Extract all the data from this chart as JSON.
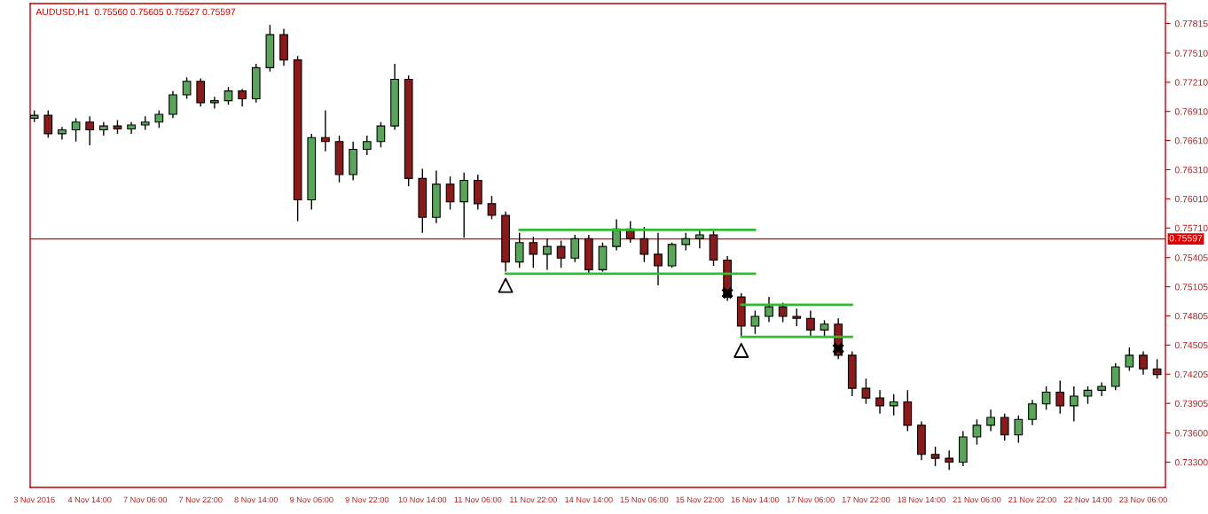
{
  "chart_data": {
    "type": "candlestick",
    "title": "AUDUSD,H1  0.75560 0.75605 0.75527 0.75597",
    "categories": [
      "3 Nov 2016",
      null,
      null,
      null,
      "4 Nov 14:00",
      null,
      null,
      null,
      "7 Nov 06:00",
      null,
      null,
      null,
      "7 Nov 22:00",
      null,
      null,
      null,
      "8 Nov 14:00",
      null,
      null,
      null,
      "9 Nov 06:00",
      null,
      null,
      null,
      "9 Nov 22:00",
      null,
      null,
      null,
      "10 Nov 14:00",
      null,
      null,
      null,
      "11 Nov 06:00",
      null,
      null,
      null,
      "11 Nov 22:00",
      null,
      null,
      null,
      "14 Nov 14:00",
      null,
      null,
      null,
      "15 Nov 06:00",
      null,
      null,
      null,
      "15 Nov 22:00",
      null,
      null,
      null,
      "16 Nov 14:00",
      null,
      null,
      null,
      "17 Nov 06:00",
      null,
      null,
      null,
      "17 Nov 22:00",
      null,
      null,
      null,
      "18 Nov 14:00",
      null,
      null,
      null,
      "21 Nov 06:00",
      null,
      null,
      null,
      "21 Nov 22:00",
      null,
      null,
      null,
      "22 Nov 14:00",
      null,
      null,
      null,
      "23 Nov 06:00",
      null
    ],
    "ohlc": [
      [
        0.7684,
        0.7692,
        0.768,
        0.7687
      ],
      [
        0.7687,
        0.7692,
        0.7664,
        0.7668
      ],
      [
        0.7668,
        0.7675,
        0.7662,
        0.7672
      ],
      [
        0.7672,
        0.7684,
        0.766,
        0.768
      ],
      [
        0.768,
        0.7686,
        0.7656,
        0.7672
      ],
      [
        0.7672,
        0.768,
        0.7666,
        0.7676
      ],
      [
        0.7676,
        0.7682,
        0.7668,
        0.7673
      ],
      [
        0.7673,
        0.768,
        0.7668,
        0.7677
      ],
      [
        0.7677,
        0.7686,
        0.7672,
        0.768
      ],
      [
        0.768,
        0.7692,
        0.7674,
        0.7688
      ],
      [
        0.7688,
        0.7712,
        0.7684,
        0.7708
      ],
      [
        0.7708,
        0.7726,
        0.7704,
        0.7722
      ],
      [
        0.7722,
        0.7725,
        0.7696,
        0.77
      ],
      [
        0.77,
        0.7706,
        0.7694,
        0.7702
      ],
      [
        0.7702,
        0.7716,
        0.7698,
        0.7712
      ],
      [
        0.7712,
        0.7714,
        0.7696,
        0.7704
      ],
      [
        0.7704,
        0.774,
        0.77,
        0.7736
      ],
      [
        0.7736,
        0.778,
        0.7732,
        0.777
      ],
      [
        0.777,
        0.7776,
        0.7738,
        0.7744
      ],
      [
        0.7744,
        0.7748,
        0.7578,
        0.76
      ],
      [
        0.76,
        0.7668,
        0.759,
        0.7664
      ],
      [
        0.7664,
        0.7692,
        0.765,
        0.766
      ],
      [
        0.766,
        0.7666,
        0.7618,
        0.7626
      ],
      [
        0.7626,
        0.766,
        0.762,
        0.7652
      ],
      [
        0.7652,
        0.7666,
        0.7646,
        0.766
      ],
      [
        0.766,
        0.768,
        0.7654,
        0.7676
      ],
      [
        0.7676,
        0.774,
        0.7672,
        0.7724
      ],
      [
        0.7724,
        0.7728,
        0.7614,
        0.7622
      ],
      [
        0.7622,
        0.7632,
        0.7566,
        0.7582
      ],
      [
        0.7582,
        0.763,
        0.7576,
        0.7616
      ],
      [
        0.7616,
        0.7624,
        0.759,
        0.7598
      ],
      [
        0.7598,
        0.7628,
        0.7561,
        0.762
      ],
      [
        0.762,
        0.7626,
        0.759,
        0.7596
      ],
      [
        0.7596,
        0.7604,
        0.758,
        0.7584
      ],
      [
        0.7584,
        0.7588,
        0.7526,
        0.7536
      ],
      [
        0.7536,
        0.7566,
        0.753,
        0.7556
      ],
      [
        0.7556,
        0.7562,
        0.753,
        0.7544
      ],
      [
        0.7544,
        0.756,
        0.7528,
        0.7552
      ],
      [
        0.7552,
        0.7558,
        0.753,
        0.754
      ],
      [
        0.754,
        0.7564,
        0.7536,
        0.756
      ],
      [
        0.756,
        0.7564,
        0.7524,
        0.7528
      ],
      [
        0.7528,
        0.7556,
        0.7526,
        0.7552
      ],
      [
        0.7552,
        0.758,
        0.7548,
        0.757
      ],
      [
        0.757,
        0.7578,
        0.7556,
        0.756
      ],
      [
        0.756,
        0.7572,
        0.7536,
        0.7544
      ],
      [
        0.7544,
        0.7566,
        0.7512,
        0.7532
      ],
      [
        0.7532,
        0.7556,
        0.753,
        0.7554
      ],
      [
        0.7554,
        0.7566,
        0.7548,
        0.756
      ],
      [
        0.756,
        0.757,
        0.755,
        0.7564
      ],
      [
        0.7564,
        0.7568,
        0.7532,
        0.7538
      ],
      [
        0.7538,
        0.7542,
        0.7496,
        0.75
      ],
      [
        0.75,
        0.7504,
        0.746,
        0.747
      ],
      [
        0.747,
        0.7486,
        0.7462,
        0.748
      ],
      [
        0.748,
        0.75,
        0.7474,
        0.749
      ],
      [
        0.749,
        0.7494,
        0.7474,
        0.748
      ],
      [
        0.748,
        0.7488,
        0.747,
        0.7478
      ],
      [
        0.7478,
        0.7486,
        0.746,
        0.7466
      ],
      [
        0.7466,
        0.7476,
        0.7458,
        0.7472
      ],
      [
        0.7472,
        0.7478,
        0.7436,
        0.744
      ],
      [
        0.744,
        0.7444,
        0.7398,
        0.7406
      ],
      [
        0.7406,
        0.7416,
        0.739,
        0.7396
      ],
      [
        0.7396,
        0.7404,
        0.738,
        0.7388
      ],
      [
        0.7388,
        0.74,
        0.7378,
        0.7392
      ],
      [
        0.7392,
        0.7404,
        0.7362,
        0.7368
      ],
      [
        0.7368,
        0.7372,
        0.7332,
        0.7338
      ],
      [
        0.7338,
        0.7346,
        0.7326,
        0.7334
      ],
      [
        0.7334,
        0.7342,
        0.7322,
        0.733
      ],
      [
        0.733,
        0.7362,
        0.7326,
        0.7356
      ],
      [
        0.7356,
        0.7374,
        0.7348,
        0.7368
      ],
      [
        0.7368,
        0.7384,
        0.7362,
        0.7376
      ],
      [
        0.7376,
        0.738,
        0.7352,
        0.7358
      ],
      [
        0.7358,
        0.7378,
        0.735,
        0.7374
      ],
      [
        0.7374,
        0.7394,
        0.7368,
        0.739
      ],
      [
        0.739,
        0.7408,
        0.7384,
        0.7402
      ],
      [
        0.7402,
        0.7414,
        0.738,
        0.7388
      ],
      [
        0.7388,
        0.7408,
        0.7372,
        0.7398
      ],
      [
        0.7398,
        0.7408,
        0.739,
        0.7404
      ],
      [
        0.7404,
        0.7412,
        0.7398,
        0.7408
      ],
      [
        0.7408,
        0.7432,
        0.7404,
        0.7428
      ],
      [
        0.7428,
        0.7448,
        0.7424,
        0.744
      ],
      [
        0.744,
        0.7444,
        0.742,
        0.7426
      ],
      [
        0.7426,
        0.7436,
        0.7416,
        0.742
      ]
    ],
    "series": [
      {
        "type": "line",
        "color": "#33bb33",
        "values": [
          null,
          null,
          null,
          null,
          null,
          null,
          null,
          null,
          null,
          null,
          null,
          null,
          null,
          null,
          null,
          null,
          null,
          null,
          null,
          null,
          null,
          null,
          null,
          null,
          null,
          null,
          null,
          null,
          null,
          null,
          null,
          null,
          null,
          null,
          null,
          0.7569,
          0.7569,
          0.7569,
          0.7569,
          0.7569,
          0.7569,
          0.7569,
          0.7569,
          0.7569,
          0.7569,
          0.7569,
          0.7569,
          0.7569,
          0.7569,
          0.7569,
          0.7569,
          0.7569,
          0.7569,
          null,
          null,
          null,
          null,
          null,
          null,
          null,
          null,
          null,
          null,
          null,
          null,
          null,
          null,
          null,
          null,
          null,
          null,
          null,
          null,
          null,
          null,
          null,
          null,
          null,
          null,
          null,
          null,
          null
        ]
      },
      {
        "type": "line",
        "color": "#33bb33",
        "values": [
          null,
          null,
          null,
          null,
          null,
          null,
          null,
          null,
          null,
          null,
          null,
          null,
          null,
          null,
          null,
          null,
          null,
          null,
          null,
          null,
          null,
          null,
          null,
          null,
          null,
          null,
          null,
          null,
          null,
          null,
          null,
          null,
          null,
          null,
          0.7524,
          0.7524,
          0.7524,
          0.7524,
          0.7524,
          0.7524,
          0.7524,
          0.7524,
          0.7524,
          0.7524,
          0.7524,
          0.7524,
          0.7524,
          0.7524,
          0.7524,
          0.7524,
          0.7524,
          0.7524,
          0.7524,
          null,
          null,
          null,
          null,
          null,
          null,
          null,
          null,
          null,
          null,
          null,
          null,
          null,
          null,
          null,
          null,
          null,
          null,
          null,
          null,
          null,
          null,
          null,
          null,
          null,
          null,
          null,
          null,
          null
        ]
      },
      {
        "type": "line",
        "color": "#33bb33",
        "values": [
          null,
          null,
          null,
          null,
          null,
          null,
          null,
          null,
          null,
          null,
          null,
          null,
          null,
          null,
          null,
          null,
          null,
          null,
          null,
          null,
          null,
          null,
          null,
          null,
          null,
          null,
          null,
          null,
          null,
          null,
          null,
          null,
          null,
          null,
          null,
          null,
          null,
          null,
          null,
          null,
          null,
          null,
          null,
          null,
          null,
          null,
          null,
          null,
          null,
          null,
          null,
          0.7492,
          0.7492,
          0.7492,
          0.7492,
          0.7492,
          0.7492,
          0.7492,
          0.7492,
          0.7492,
          null,
          null,
          null,
          null,
          null,
          null,
          null,
          null,
          null,
          null,
          null,
          null,
          null,
          null,
          null,
          null,
          null,
          null,
          null,
          null,
          null,
          null
        ]
      },
      {
        "type": "line",
        "color": "#33bb33",
        "values": [
          null,
          null,
          null,
          null,
          null,
          null,
          null,
          null,
          null,
          null,
          null,
          null,
          null,
          null,
          null,
          null,
          null,
          null,
          null,
          null,
          null,
          null,
          null,
          null,
          null,
          null,
          null,
          null,
          null,
          null,
          null,
          null,
          null,
          null,
          null,
          null,
          null,
          null,
          null,
          null,
          null,
          null,
          null,
          null,
          null,
          null,
          null,
          null,
          null,
          null,
          null,
          0.7459,
          0.7459,
          0.7459,
          0.7459,
          0.7459,
          0.7459,
          0.7459,
          0.7459,
          0.7459,
          null,
          null,
          null,
          null,
          null,
          null,
          null,
          null,
          null,
          null,
          null,
          null,
          null,
          null,
          null,
          null,
          null,
          null,
          null,
          null,
          null,
          null
        ]
      },
      {
        "type": "scatter",
        "marker": "triangle",
        "color": "#000000",
        "values": [
          null,
          null,
          null,
          null,
          null,
          null,
          null,
          null,
          null,
          null,
          null,
          null,
          null,
          null,
          null,
          null,
          null,
          null,
          null,
          null,
          null,
          null,
          null,
          null,
          null,
          null,
          null,
          null,
          null,
          null,
          null,
          null,
          null,
          null,
          0.7512,
          null,
          null,
          null,
          null,
          null,
          null,
          null,
          null,
          null,
          null,
          null,
          null,
          null,
          null,
          null,
          null,
          0.7445,
          null,
          null,
          null,
          null,
          null,
          null,
          null,
          null,
          null,
          null,
          null,
          null,
          null,
          null,
          null,
          null,
          null,
          null,
          null,
          null,
          null,
          null,
          null,
          null,
          null,
          null,
          null,
          null,
          null,
          null
        ]
      },
      {
        "type": "scatter",
        "marker": "cross",
        "color": "#000000",
        "values": [
          null,
          null,
          null,
          null,
          null,
          null,
          null,
          null,
          null,
          null,
          null,
          null,
          null,
          null,
          null,
          null,
          null,
          null,
          null,
          null,
          null,
          null,
          null,
          null,
          null,
          null,
          null,
          null,
          null,
          null,
          null,
          null,
          null,
          null,
          null,
          null,
          null,
          null,
          null,
          null,
          null,
          null,
          null,
          null,
          null,
          null,
          null,
          null,
          null,
          null,
          0.7504,
          null,
          null,
          null,
          null,
          null,
          null,
          null,
          0.7447,
          null,
          null,
          null,
          null,
          null,
          null,
          null,
          null,
          null,
          null,
          null,
          null,
          null,
          null,
          null,
          null,
          null,
          null,
          null,
          null,
          null,
          null,
          null
        ]
      }
    ],
    "ref_lines": [
      {
        "axis": "y",
        "value": 0.75597,
        "label": "0.75597",
        "color": "#e00000"
      }
    ],
    "ylim": [
      0.7304,
      0.7802
    ],
    "yticks": [
      0.77815,
      {
        "value": 0.7751,
        "label": "0.77510"
      },
      {
        "value": 0.7721,
        "label": "0.77210"
      },
      {
        "value": 0.7691,
        "label": "0.76910"
      },
      {
        "value": 0.7661,
        "label": "0.76610"
      },
      {
        "value": 0.7631,
        "label": "0.76310"
      },
      {
        "value": 0.7601,
        "label": "0.76010"
      },
      {
        "value": 0.7571,
        "label": "0.75710"
      },
      0.75405,
      0.75105,
      0.74805,
      0.74505,
      0.74205,
      0.73905,
      {
        "value": 0.736,
        "label": "0.73600"
      },
      {
        "value": 0.733,
        "label": "0.73300"
      }
    ],
    "grid": false,
    "legend": false
  }
}
